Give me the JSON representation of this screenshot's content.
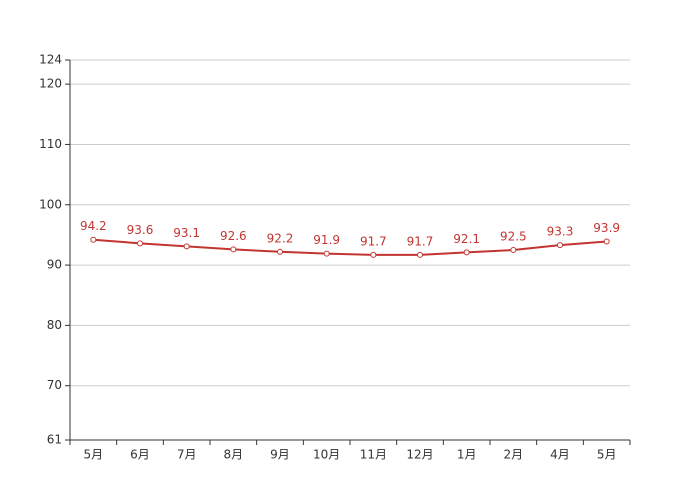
{
  "chart_data": {
    "type": "line",
    "categories": [
      "5月",
      "6月",
      "7月",
      "8月",
      "9月",
      "10月",
      "11月",
      "12月",
      "1月",
      "2月",
      "4月",
      "5月"
    ],
    "values": [
      94.2,
      93.6,
      93.1,
      92.6,
      92.2,
      91.9,
      91.7,
      91.7,
      92.1,
      92.5,
      93.3,
      93.9
    ],
    "color": "#c23531",
    "ylim": [
      61,
      124
    ],
    "yticks": [
      61,
      70,
      80,
      90,
      100,
      110,
      120,
      124
    ],
    "grid": true
  }
}
